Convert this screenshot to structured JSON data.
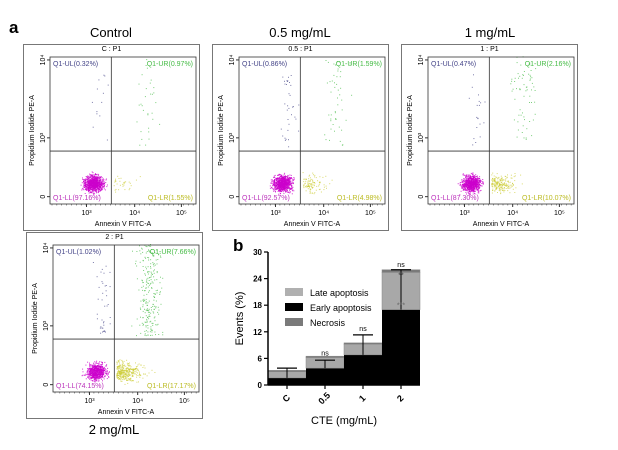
{
  "panel_a_label": "a",
  "panel_b_label": "b",
  "flow_plots": [
    {
      "condition": "Control",
      "gate": "C : P1",
      "UL": "Q1-UL(0.32%)",
      "UR": "Q1-UR(0.97%)",
      "LL": "Q1-LL(97.16%)",
      "LR": "Q1-LR(1.55%)",
      "values": {
        "UL": 0.32,
        "UR": 0.97,
        "LL": 97.16,
        "LR": 1.55
      }
    },
    {
      "condition": "0.5 mg/mL",
      "gate": "0.5 : P1",
      "UL": "Q1-UL(0.86%)",
      "UR": "Q1-UR(1.59%)",
      "LL": "Q1-LL(92.57%)",
      "LR": "Q1-LR(4.98%)",
      "values": {
        "UL": 0.86,
        "UR": 1.59,
        "LL": 92.57,
        "LR": 4.98
      }
    },
    {
      "condition": "1 mg/mL",
      "gate": "1 : P1",
      "UL": "Q1-UL(0.47%)",
      "UR": "Q1-UR(2.16%)",
      "LL": "Q1-LL(87.30%)",
      "LR": "Q1-LR(10.07%)",
      "values": {
        "UL": 0.47,
        "UR": 2.16,
        "LL": 87.3,
        "LR": 10.07
      }
    },
    {
      "condition": "2 mg/mL",
      "gate": "2 : P1",
      "UL": "Q1-UL(1.02%)",
      "UR": "Q1-UR(7.66%)",
      "LL": "Q1-LL(74.15%)",
      "LR": "Q1-LR(17.17%)",
      "values": {
        "UL": 1.02,
        "UR": 7.66,
        "LL": 74.15,
        "LR": 17.17
      }
    }
  ],
  "flow_axes": {
    "xlabel": "Annexin V FITC-A",
    "ylabel": "Propidium Iodide PE-A",
    "xticks": [
      "10³",
      "10⁴",
      "10⁵"
    ],
    "yticks": [
      "0",
      "10³",
      "10⁴"
    ]
  },
  "colors": {
    "LL": "#cc00cc",
    "LR": "#cccc33",
    "UR": "#44bb44",
    "UL": "#444488",
    "early": "#000000",
    "late": "#a8a8a8",
    "necrosis": "#7a7a7a"
  },
  "chart_data": {
    "type": "bar",
    "stacked": true,
    "categories": [
      "C",
      "0.5",
      "1",
      "2"
    ],
    "xlabel": "CTE (mg/mL)",
    "ylabel": "Events (%)",
    "ylim": [
      0,
      30
    ],
    "yticks": [
      "0",
      "6",
      "12",
      "18",
      "24",
      "30"
    ],
    "legend_position": "top-left",
    "series": [
      {
        "name": "Early apoptosis",
        "values": [
          1.6,
          3.8,
          6.8,
          17.0
        ]
      },
      {
        "name": "Late apoptosis",
        "values": [
          1.4,
          2.4,
          2.4,
          8.4
        ]
      },
      {
        "name": "Necrosis",
        "values": [
          0.3,
          0.3,
          0.3,
          0.6
        ]
      }
    ],
    "error_bar_tops": [
      3.8,
      5.6,
      11.3,
      26.0
    ],
    "annotations": [
      {
        "category": "0.5",
        "text": "ns"
      },
      {
        "category": "1",
        "text": "ns"
      },
      {
        "category": "2",
        "text": "ns"
      },
      {
        "category": "2",
        "text": "**"
      },
      {
        "category": "2",
        "text": "***"
      }
    ]
  }
}
